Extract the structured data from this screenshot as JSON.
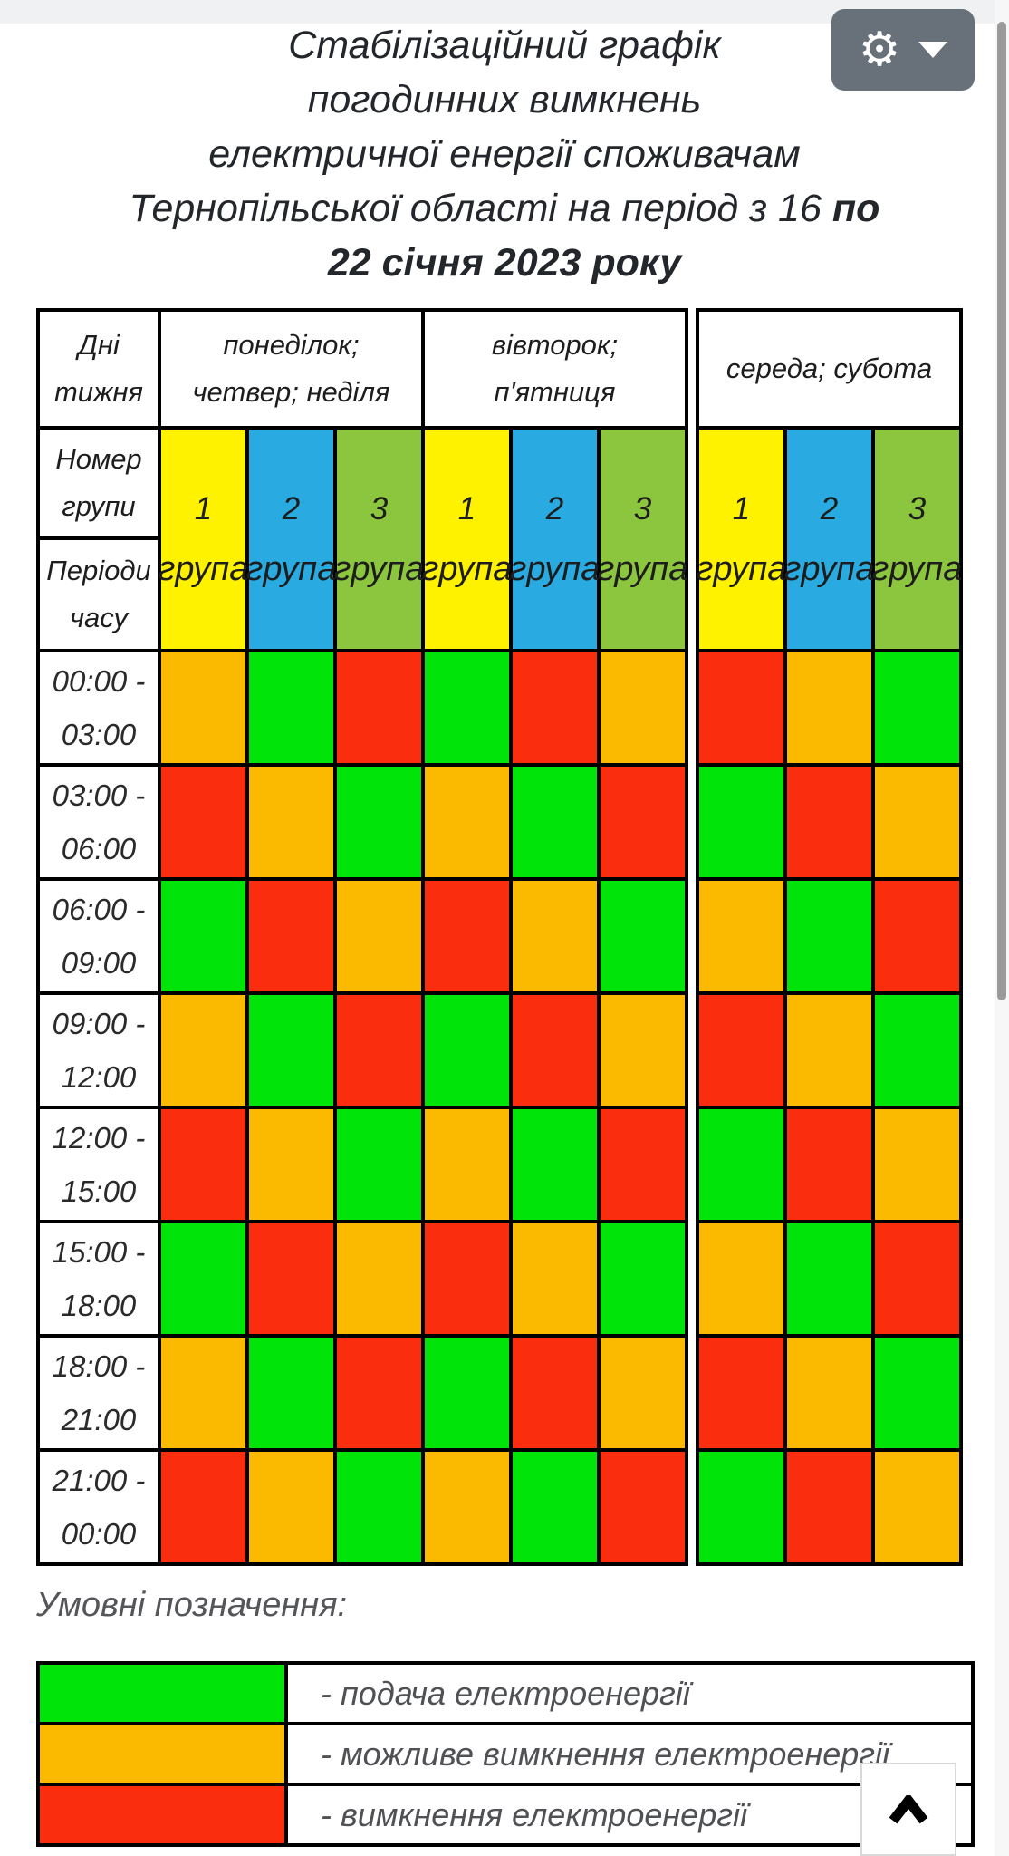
{
  "page": {
    "background": "#ffffff",
    "top_strip_color": "#f0f1f2"
  },
  "header": {
    "title_lines": [
      {
        "regular": "Стабілізаційний графік"
      },
      {
        "regular": "погодинних вимкнень"
      },
      {
        "regular": "електричної енергії споживачам"
      },
      {
        "regular": "Тернопільської області на період з 16",
        "bold": "по"
      },
      {
        "bold": "22 січня 2023 року"
      }
    ],
    "settings_button": {
      "icon": "gear",
      "gear_glyph": "⚙",
      "dropdown_icon": "caret-down"
    }
  },
  "table": {
    "corner_headers": {
      "days": "Дні\nтижня",
      "group_number": "Номер\nгрупи",
      "time_periods": "Періоди\nчасу"
    },
    "day_blocks": [
      {
        "label": "понеділок;\nчетвер; неділя"
      },
      {
        "label": "вівторок;\nп'ятниця"
      },
      {
        "label": "середа; субота"
      }
    ],
    "group_headers": [
      {
        "num": "1",
        "word": "група",
        "color": "#FFF200"
      },
      {
        "num": "2",
        "word": "група",
        "color": "#29ABE2"
      },
      {
        "num": "3",
        "word": "група",
        "color": "#8CC63F"
      }
    ],
    "status_colors": {
      "green": "#00E40A",
      "orange": "#FBBA00",
      "red": "#FA2E0E"
    },
    "rows": [
      {
        "time_lines": [
          "00:00 -",
          "03:00"
        ],
        "cells": [
          "orange",
          "green",
          "red",
          "green",
          "red",
          "orange",
          "red",
          "orange",
          "green"
        ]
      },
      {
        "time_lines": [
          "03:00 -",
          "06:00"
        ],
        "cells": [
          "red",
          "orange",
          "green",
          "orange",
          "green",
          "red",
          "green",
          "red",
          "orange"
        ]
      },
      {
        "time_lines": [
          "06:00 -",
          "09:00"
        ],
        "cells": [
          "green",
          "red",
          "orange",
          "red",
          "orange",
          "green",
          "orange",
          "green",
          "red"
        ]
      },
      {
        "time_lines": [
          "09:00 -",
          "12:00"
        ],
        "cells": [
          "orange",
          "green",
          "red",
          "green",
          "red",
          "orange",
          "red",
          "orange",
          "green"
        ]
      },
      {
        "time_lines": [
          "12:00 -",
          "15:00"
        ],
        "cells": [
          "red",
          "orange",
          "green",
          "orange",
          "green",
          "red",
          "green",
          "red",
          "orange"
        ]
      },
      {
        "time_lines": [
          "15:00 -",
          "18:00"
        ],
        "cells": [
          "green",
          "red",
          "orange",
          "red",
          "orange",
          "green",
          "orange",
          "green",
          "red"
        ]
      },
      {
        "time_lines": [
          "18:00 -",
          "21:00"
        ],
        "cells": [
          "orange",
          "green",
          "red",
          "green",
          "red",
          "orange",
          "red",
          "orange",
          "green"
        ]
      },
      {
        "time_lines": [
          "21:00 -",
          "00:00"
        ],
        "cells": [
          "red",
          "orange",
          "green",
          "orange",
          "green",
          "red",
          "green",
          "red",
          "orange"
        ]
      }
    ]
  },
  "legend": {
    "heading": "Умовні позначення:",
    "items": [
      {
        "key": "green",
        "label": "- подача електроенергії"
      },
      {
        "key": "orange",
        "label": "- можливе вимкнення електроенергії"
      },
      {
        "key": "red",
        "label": "- вимкнення електроенергії"
      }
    ]
  },
  "icons": {
    "settings": "gear",
    "dropdown": "caret-down",
    "back_to_top": "chevron-up"
  }
}
